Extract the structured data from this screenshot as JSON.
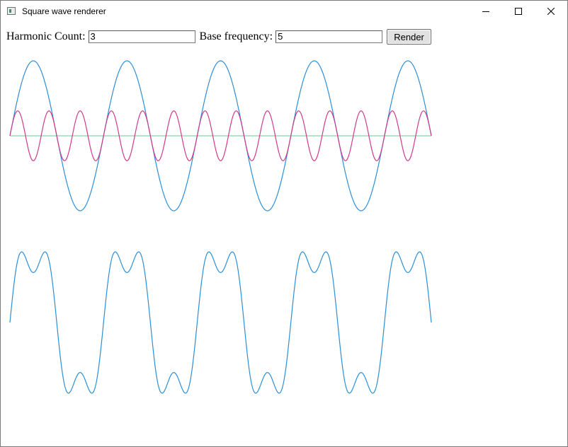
{
  "window": {
    "title": "Square wave renderer",
    "icon": "app-window-icon",
    "controls": [
      "minimize-icon",
      "maximize-icon",
      "close-icon"
    ]
  },
  "form": {
    "harmonic_label": "Harmonic Count:",
    "harmonic_value": "3",
    "frequency_label": "Base frequency:",
    "frequency_value": "5",
    "render_label": "Render"
  },
  "colors": {
    "fundamental": "#2d8fd5",
    "third_harmonic": "#d13a8b",
    "baseline": "#7fd6a4",
    "sum": "#2d8fd5"
  },
  "chart_data": [
    {
      "type": "line",
      "title": "",
      "xlabel": "",
      "ylabel": "",
      "grid": false,
      "series": [
        {
          "harmonic": 1,
          "cycles": 4.5,
          "amplitude": 1.0,
          "color": "fundamental"
        },
        {
          "harmonic": 3,
          "cycles": 13.5,
          "amplitude": 0.333,
          "color": "third_harmonic"
        },
        {
          "harmonic": 0,
          "cycles": 0,
          "amplitude": 0,
          "color": "baseline"
        }
      ]
    },
    {
      "type": "line",
      "title": "",
      "xlabel": "",
      "ylabel": "",
      "grid": false,
      "series": [
        {
          "harmonics": [
            1,
            3
          ],
          "cycles": 4.5,
          "color": "sum"
        }
      ]
    }
  ]
}
